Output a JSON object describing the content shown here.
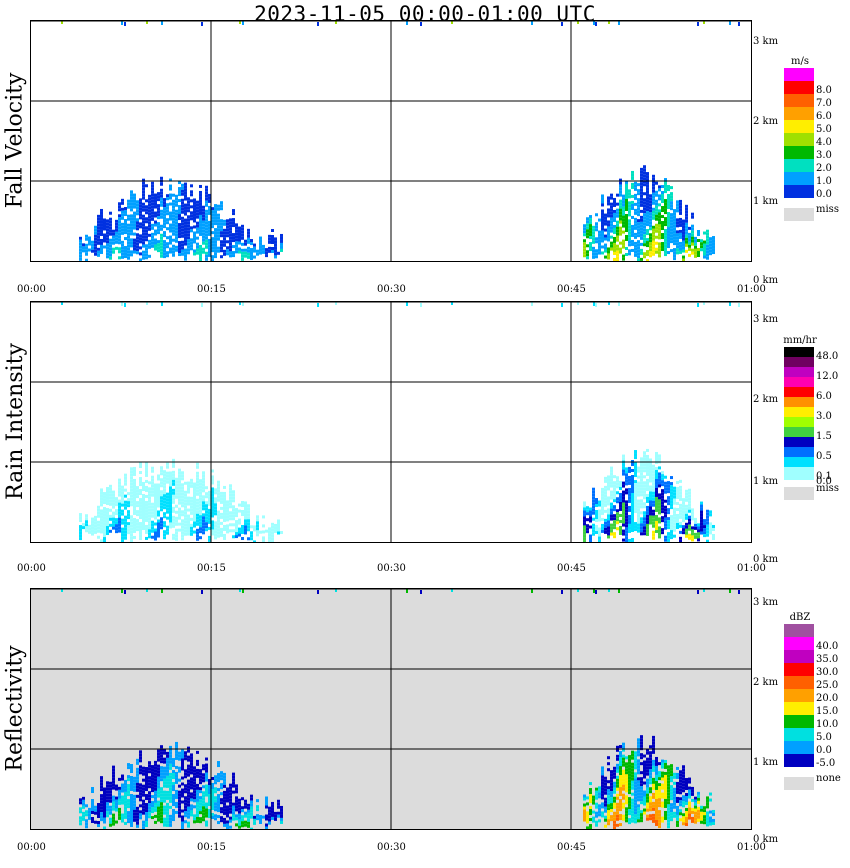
{
  "title": "2023-11-05   00:00-01:00 UTC",
  "x_ticks": [
    "00:00",
    "00:15",
    "00:30",
    "00:45",
    "01:00"
  ],
  "y_ticks": [
    "0 km",
    "1 km",
    "2 km",
    "3 km"
  ],
  "panels": [
    {
      "title": "Fall Velocity",
      "unit": "m/s",
      "background": "#ffffff",
      "legend": [
        {
          "color": "#ff00ff",
          "label": ""
        },
        {
          "color": "#ff0000",
          "label": "8.0"
        },
        {
          "color": "#ff6000",
          "label": "7.0"
        },
        {
          "color": "#ffa000",
          "label": "6.0"
        },
        {
          "color": "#ffee00",
          "label": "5.0"
        },
        {
          "color": "#a0e000",
          "label": "4.0"
        },
        {
          "color": "#00b800",
          "label": "3.0"
        },
        {
          "color": "#00e0c0",
          "label": "2.0"
        },
        {
          "color": "#00a0ff",
          "label": "1.0"
        },
        {
          "color": "#0030e0",
          "label": "0.0"
        }
      ],
      "miss_label": "miss"
    },
    {
      "title": "Rain Intensity",
      "unit": "mm/hr",
      "background": "#ffffff",
      "legend": [
        {
          "color": "#000000",
          "label": "48.0"
        },
        {
          "color": "#700060",
          "label": ""
        },
        {
          "color": "#c000c0",
          "label": "12.0"
        },
        {
          "color": "#ff00b0",
          "label": ""
        },
        {
          "color": "#ff0000",
          "label": "6.0"
        },
        {
          "color": "#ff9000",
          "label": ""
        },
        {
          "color": "#ffee00",
          "label": "3.0"
        },
        {
          "color": "#a0ff00",
          "label": ""
        },
        {
          "color": "#40d040",
          "label": "1.5"
        },
        {
          "color": "#0000c0",
          "label": ""
        },
        {
          "color": "#0070ff",
          "label": "0.5"
        },
        {
          "color": "#00e0ff",
          "label": ""
        },
        {
          "color": "#a0ffff",
          "label": "0.1"
        }
      ],
      "zero_label": "0.0",
      "miss_label": "miss"
    },
    {
      "title": "Reflectivity",
      "unit": "dBZ",
      "background": "#dcdcdc",
      "legend": [
        {
          "color": "#a050a0",
          "label": ""
        },
        {
          "color": "#ff00ff",
          "label": "40.0"
        },
        {
          "color": "#c000c0",
          "label": "35.0"
        },
        {
          "color": "#ff0000",
          "label": "30.0"
        },
        {
          "color": "#ff6000",
          "label": "25.0"
        },
        {
          "color": "#ffa000",
          "label": "20.0"
        },
        {
          "color": "#ffee00",
          "label": "15.0"
        },
        {
          "color": "#00b800",
          "label": "10.0"
        },
        {
          "color": "#00e0e0",
          "label": "5.0"
        },
        {
          "color": "#00a0ff",
          "label": "0.0"
        },
        {
          "color": "#0000c0",
          "label": "-5.0"
        }
      ],
      "miss_label": "none"
    }
  ],
  "chart_data": {
    "type": "heatmap",
    "title": "2023-11-05   00:00-01:00 UTC",
    "x_range": [
      "00:00",
      "01:00"
    ],
    "y_range_km": [
      0,
      3.1
    ],
    "grid": true,
    "echoes_time_height": [
      {
        "start": "00:04",
        "end": "00:21",
        "top_km": 1.1,
        "max_fall_velocity_ms": 2.0,
        "max_rain_mmhr": 0.5,
        "max_dbz": 10
      },
      {
        "start": "00:46",
        "end": "00:57",
        "top_km": 1.2,
        "max_fall_velocity_ms": 5.0,
        "max_rain_mmhr": 3.0,
        "max_dbz": 20
      }
    ],
    "noise_height_km": 3.0
  }
}
